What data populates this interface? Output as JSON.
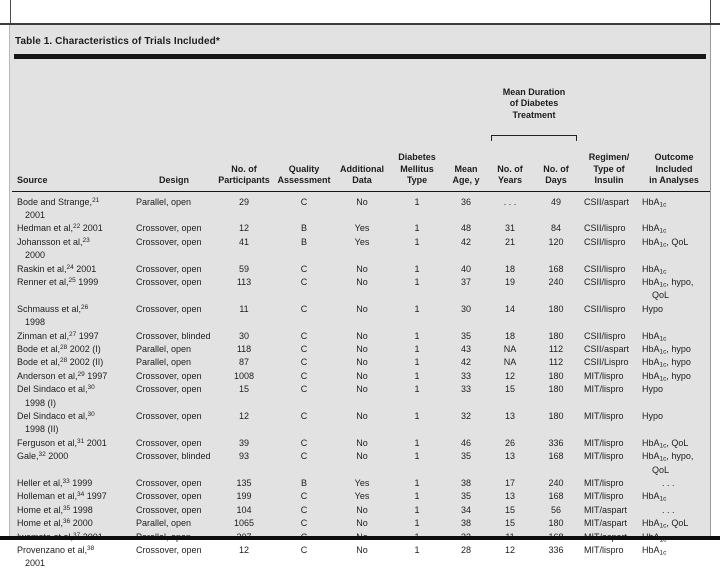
{
  "page": {
    "title": "Table 1. Characteristics of Trials Included*"
  },
  "colors": {
    "panel_bg": "#e2e2e2",
    "rule_black": "#161616",
    "text": "#1d1d1d"
  },
  "header": {
    "source": "Source",
    "design": "Design",
    "participants": "No. of\nParticipants",
    "quality": "Quality\nAssessment",
    "additional": "Additional\nData",
    "mellitus": "Diabetes\nMellitus\nType",
    "age": "Mean\nAge, y",
    "duration_group": "Mean Duration\nof Diabetes\nTreatment",
    "years": "No. of\nYears",
    "days": "No. of\nDays",
    "regimen": "Regimen/\nType of\nInsulin",
    "outcome": "Outcome\nIncluded\nin Analyses"
  },
  "rows": [
    {
      "src_pre": "Bode and Strange,",
      "src_sup": "21",
      "src_post": "\n2001",
      "design": "Parallel, open",
      "participants": "29",
      "quality": "C",
      "additional": "No",
      "type": "1",
      "age": "36",
      "years": ". . .",
      "days": "49",
      "regimen": "CSII/aspart",
      "out_pre": "HbA",
      "out_sub": "1c",
      "out_post": ""
    },
    {
      "src_pre": "Hedman et al,",
      "src_sup": "22",
      "src_post": " 2001",
      "design": "Crossover, open",
      "participants": "12",
      "quality": "B",
      "additional": "Yes",
      "type": "1",
      "age": "48",
      "years": "31",
      "days": "84",
      "regimen": "CSII/lispro",
      "out_pre": "HbA",
      "out_sub": "1c",
      "out_post": ""
    },
    {
      "src_pre": "Johansson et al,",
      "src_sup": "23",
      "src_post": "\n2000",
      "design": "Crossover, open",
      "participants": "41",
      "quality": "B",
      "additional": "Yes",
      "type": "1",
      "age": "42",
      "years": "21",
      "days": "120",
      "regimen": "CSII/lispro",
      "out_pre": "HbA",
      "out_sub": "1c",
      "out_post": ", QoL"
    },
    {
      "src_pre": "Raskin et al,",
      "src_sup": "24",
      "src_post": " 2001",
      "design": "Crossover, open",
      "participants": "59",
      "quality": "C",
      "additional": "No",
      "type": "1",
      "age": "40",
      "years": "18",
      "days": "168",
      "regimen": "CSII/lispro",
      "out_pre": "HbA",
      "out_sub": "1c",
      "out_post": ""
    },
    {
      "src_pre": "Renner et al,",
      "src_sup": "25",
      "src_post": " 1999",
      "design": "Crossover, open",
      "participants": "113",
      "quality": "C",
      "additional": "No",
      "type": "1",
      "age": "37",
      "years": "19",
      "days": "240",
      "regimen": "CSII/lispro",
      "out_pre": "HbA",
      "out_sub": "1c",
      "out_post": ", hypo,\nQoL"
    },
    {
      "src_pre": "Schmauss et al,",
      "src_sup": "26",
      "src_post": "\n1998",
      "design": "Crossover, open",
      "participants": "11",
      "quality": "C",
      "additional": "No",
      "type": "1",
      "age": "30",
      "years": "14",
      "days": "180",
      "regimen": "CSII/lispro",
      "out_pre": "Hypo",
      "out_sub": "",
      "out_post": ""
    },
    {
      "src_pre": "Zinman et al,",
      "src_sup": "27",
      "src_post": " 1997",
      "design": "Crossover, blinded",
      "participants": "30",
      "quality": "C",
      "additional": "No",
      "type": "1",
      "age": "35",
      "years": "18",
      "days": "180",
      "regimen": "CSII/lispro",
      "out_pre": "HbA",
      "out_sub": "1c",
      "out_post": ""
    },
    {
      "src_pre": "Bode et al,",
      "src_sup": "28",
      "src_post": " 2002 (I)",
      "design": "Parallel, open",
      "participants": "118",
      "quality": "C",
      "additional": "No",
      "type": "1",
      "age": "43",
      "years": "NA",
      "days": "112",
      "regimen": "CSII/aspart",
      "out_pre": "HbA",
      "out_sub": "1c",
      "out_post": ", hypo"
    },
    {
      "src_pre": "Bode et al,",
      "src_sup": "28",
      "src_post": " 2002 (II)",
      "design": "Parallel, open",
      "participants": "87",
      "quality": "C",
      "additional": "No",
      "type": "1",
      "age": "42",
      "years": "NA",
      "days": "112",
      "regimen": "CSII/Lispro",
      "out_pre": "HbA",
      "out_sub": "1c",
      "out_post": ", hypo"
    },
    {
      "src_pre": "Anderson et al,",
      "src_sup": "29",
      "src_post": " 1997",
      "design": "Crossover, open",
      "participants": "1008",
      "quality": "C",
      "additional": "No",
      "type": "1",
      "age": "33",
      "years": "12",
      "days": "180",
      "regimen": "MIT/lispro",
      "out_pre": "HbA",
      "out_sub": "1c",
      "out_post": ", hypo"
    },
    {
      "src_pre": "Del Sindaco et al,",
      "src_sup": "30",
      "src_post": "\n1998 (I)",
      "design": "Crossover, open",
      "participants": "15",
      "quality": "C",
      "additional": "No",
      "type": "1",
      "age": "33",
      "years": "15",
      "days": "180",
      "regimen": "MIT/lispro",
      "out_pre": "Hypo",
      "out_sub": "",
      "out_post": ""
    },
    {
      "src_pre": "Del Sindaco et al,",
      "src_sup": "30",
      "src_post": "\n1998 (II)",
      "design": "Crossover, open",
      "participants": "12",
      "quality": "C",
      "additional": "No",
      "type": "1",
      "age": "32",
      "years": "13",
      "days": "180",
      "regimen": "MIT/lispro",
      "out_pre": "Hypo",
      "out_sub": "",
      "out_post": ""
    },
    {
      "src_pre": "Ferguson et al,",
      "src_sup": "31",
      "src_post": " 2001",
      "design": "Crossover, open",
      "participants": "39",
      "quality": "C",
      "additional": "No",
      "type": "1",
      "age": "46",
      "years": "26",
      "days": "336",
      "regimen": "MIT/lispro",
      "out_pre": "HbA",
      "out_sub": "1c",
      "out_post": ", QoL"
    },
    {
      "src_pre": "Gale,",
      "src_sup": "32",
      "src_post": " 2000",
      "design": "Crossover, blinded",
      "participants": "93",
      "quality": "C",
      "additional": "No",
      "type": "1",
      "age": "35",
      "years": "13",
      "days": "168",
      "regimen": "MIT/lispro",
      "out_pre": "HbA",
      "out_sub": "1c",
      "out_post": ", hypo,\nQoL"
    },
    {
      "src_pre": "Heller et al,",
      "src_sup": "33",
      "src_post": " 1999",
      "design": "Crossover, open",
      "participants": "135",
      "quality": "B",
      "additional": "Yes",
      "type": "1",
      "age": "38",
      "years": "17",
      "days": "240",
      "regimen": "MIT/lispro",
      "out_pre": ". . .",
      "out_sub": "",
      "out_post": ""
    },
    {
      "src_pre": "Holleman et al,",
      "src_sup": "34",
      "src_post": " 1997",
      "design": "Crossover, open",
      "participants": "199",
      "quality": "C",
      "additional": "Yes",
      "type": "1",
      "age": "35",
      "years": "13",
      "days": "168",
      "regimen": "MIT/lispro",
      "out_pre": "HbA",
      "out_sub": "1c",
      "out_post": ""
    },
    {
      "src_pre": "Home et al,",
      "src_sup": "35",
      "src_post": " 1998",
      "design": "Crossover, open",
      "participants": "104",
      "quality": "C",
      "additional": "No",
      "type": "1",
      "age": "34",
      "years": "15",
      "days": "56",
      "regimen": "MIT/aspart",
      "out_pre": ". . .",
      "out_sub": "",
      "out_post": ""
    },
    {
      "src_pre": "Home et al,",
      "src_sup": "36",
      "src_post": " 2000",
      "design": "Parallel, open",
      "participants": "1065",
      "quality": "C",
      "additional": "No",
      "type": "1",
      "age": "38",
      "years": "15",
      "days": "180",
      "regimen": "MIT/aspart",
      "out_pre": "HbA",
      "out_sub": "1c",
      "out_post": ", QoL"
    },
    {
      "src_pre": "Iwamoto et al,",
      "src_sup": "37",
      "src_post": " 2001",
      "design": "Parallel, open",
      "participants": "207",
      "quality": "C",
      "additional": "No",
      "type": "1",
      "age": "33",
      "years": "11",
      "days": "168",
      "regimen": "MIT/aspart",
      "out_pre": "HbA",
      "out_sub": "1c",
      "out_post": ""
    },
    {
      "src_pre": "Provenzano et al,",
      "src_sup": "38",
      "src_post": "\n2001",
      "design": "Crossover, open",
      "participants": "12",
      "quality": "C",
      "additional": "No",
      "type": "1",
      "age": "28",
      "years": "12",
      "days": "336",
      "regimen": "MIT/lispro",
      "out_pre": "HbA",
      "out_sub": "1c",
      "out_post": ""
    }
  ]
}
